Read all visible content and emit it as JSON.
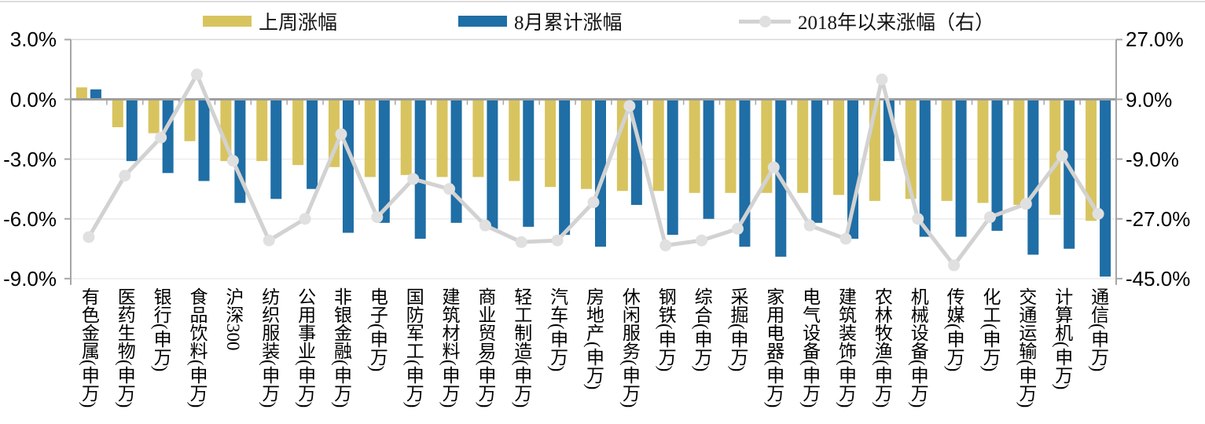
{
  "chart_data": {
    "type": "combo_bar_line",
    "title": "",
    "legend_position": "top",
    "categories": [
      "有色金属(申万)",
      "医药生物(申万)",
      "银行(申万)",
      "食品饮料(申万)",
      "沪深300",
      "纺织服装(申万)",
      "公用事业(申万)",
      "非银金融(申万)",
      "电子(申万)",
      "国防军工(申万)",
      "建筑材料(申万)",
      "商业贸易(申万)",
      "轻工制造(申万)",
      "汽车(申万)",
      "房地产(申万)",
      "休闲服务(申万)",
      "钢铁(申万)",
      "综合(申万)",
      "采掘(申万)",
      "家用电器(申万)",
      "电气设备(申万)",
      "建筑装饰(申万)",
      "农林牧渔(申万)",
      "机械设备(申万)",
      "传媒(申万)",
      "化工(申万)",
      "交通运输(申万)",
      "计算机(申万)",
      "通信(申万)"
    ],
    "series": [
      {
        "name": "上周涨幅",
        "type": "bar",
        "axis": "left",
        "color": "#d8c45f",
        "values": [
          0.6,
          -1.4,
          -1.7,
          -2.1,
          -3.1,
          -3.1,
          -3.3,
          -3.4,
          -3.9,
          -3.8,
          -3.9,
          -3.9,
          -4.1,
          -4.4,
          -4.5,
          -4.6,
          -4.6,
          -4.7,
          -4.7,
          -4.7,
          -4.7,
          -4.8,
          -5.1,
          -5.0,
          -5.1,
          -5.2,
          -5.3,
          -5.8,
          -6.1
        ]
      },
      {
        "name": "8月累计涨幅",
        "type": "bar",
        "axis": "left",
        "color": "#1f6ea6",
        "values": [
          0.5,
          -3.1,
          -3.7,
          -4.1,
          -5.2,
          -5.0,
          -4.5,
          -6.7,
          -6.2,
          -7.0,
          -6.2,
          -6.5,
          -6.4,
          -6.8,
          -7.4,
          -5.3,
          -6.8,
          -6.0,
          -7.4,
          -7.9,
          -6.2,
          -7.0,
          -3.1,
          -6.9,
          -6.9,
          -6.6,
          -7.8,
          -7.5,
          -8.9
        ]
      },
      {
        "name": "2018年以来涨幅（右）",
        "type": "line",
        "axis": "right",
        "color": "#d2d2d2",
        "marker_color": "#e0e0e0",
        "values": [
          -32.5,
          -14.0,
          -2.5,
          16.5,
          -9.5,
          -33.5,
          -27.0,
          -1.5,
          -26.5,
          -15.0,
          -18.0,
          -29.0,
          -34.0,
          -33.5,
          -22.0,
          7.0,
          -35.0,
          -33.5,
          -30.0,
          -11.5,
          -29.0,
          -33.0,
          15.0,
          -27.0,
          -41.0,
          -26.5,
          -22.5,
          -8.0,
          -25.5
        ]
      }
    ],
    "left_axis": {
      "tick_labels": [
        "3.0%",
        "0.0%",
        "-3.0%",
        "-6.0%",
        "-9.0%"
      ],
      "tick_values": [
        3,
        0,
        -3,
        -6,
        -9
      ],
      "min": -9,
      "max": 3
    },
    "right_axis": {
      "tick_labels": [
        "27.0%",
        "9.0%",
        "-9.0%",
        "-27.0%",
        "-45.0%"
      ],
      "tick_values": [
        27,
        9,
        -9,
        -27,
        -45
      ],
      "min": -45,
      "max": 27
    },
    "grid": true,
    "colors": {
      "zero_line": "#9e9e9e",
      "axis_line": "#a6a6a6",
      "grid_line": "#ececec",
      "top_border": "#d9d9d9"
    }
  }
}
